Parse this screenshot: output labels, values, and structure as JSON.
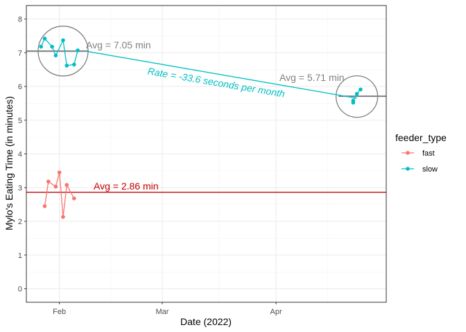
{
  "chart_data": {
    "type": "line",
    "xlabel": "Date (2022)",
    "ylabel": "Mylo's Eating Time (in minutes)",
    "x_ticks": [
      {
        "date": "2022-02-01",
        "label": "Feb"
      },
      {
        "date": "2022-03-01",
        "label": "Mar"
      },
      {
        "date": "2022-04-01",
        "label": "Apr"
      }
    ],
    "xlim": [
      "2022-01-23",
      "2022-05-01"
    ],
    "ylim": [
      -0.4,
      8.4
    ],
    "y_ticks": [
      0,
      1,
      2,
      3,
      4,
      5,
      6,
      7,
      8
    ],
    "grid": true,
    "legend": {
      "title": "feeder_type",
      "position": "right"
    },
    "series": [
      {
        "name": "fast",
        "color": "#F8766D",
        "points": [
          {
            "x": "2022-01-28",
            "y": 2.45
          },
          {
            "x": "2022-01-29",
            "y": 3.18
          },
          {
            "x": "2022-01-31",
            "y": 3.03
          },
          {
            "x": "2022-02-01",
            "y": 3.45
          },
          {
            "x": "2022-02-02",
            "y": 2.13
          },
          {
            "x": "2022-02-03",
            "y": 3.08
          },
          {
            "x": "2022-02-05",
            "y": 2.68
          }
        ]
      },
      {
        "name": "slow",
        "color": "#00BFC4",
        "points": [
          {
            "x": "2022-01-27",
            "y": 7.18
          },
          {
            "x": "2022-01-28",
            "y": 7.42
          },
          {
            "x": "2022-01-30",
            "y": 7.18
          },
          {
            "x": "2022-01-31",
            "y": 6.92
          },
          {
            "x": "2022-02-02",
            "y": 7.37
          },
          {
            "x": "2022-02-03",
            "y": 6.62
          },
          {
            "x": "2022-02-05",
            "y": 6.65
          },
          {
            "x": "2022-02-06",
            "y": 7.07
          },
          {
            "x": "2022-04-22",
            "y": 5.52
          },
          {
            "x": "2022-04-22",
            "y": 5.58
          },
          {
            "x": "2022-04-23",
            "y": 5.78
          },
          {
            "x": "2022-04-24",
            "y": 5.91
          }
        ]
      }
    ],
    "annotations": {
      "fast_avg": {
        "text": "Avg =  2.86 min",
        "value": 2.86,
        "color": "#C00000"
      },
      "slow_avg_early": {
        "text": "Avg =  7.05 min",
        "value": 7.05,
        "color": "#7F7F7F",
        "from": "2022-01-23",
        "to": "2022-02-09"
      },
      "slow_avg_late": {
        "text": "Avg = 5.71 min",
        "value": 5.71,
        "color": "#7F7F7F",
        "from": "2022-04-18",
        "to": "2022-05-01"
      },
      "rate": {
        "text": "Rate =  -33.6 seconds per month",
        "color": "#00BFC4",
        "start": {
          "x": "2022-02-08",
          "y": 7.05
        },
        "end": {
          "x": "2022-04-23",
          "y": 5.65
        }
      },
      "circles": [
        {
          "x": "2022-02-02",
          "y": 7.05,
          "color": "#7F7F7F"
        },
        {
          "x": "2022-04-23",
          "y": 5.7,
          "color": "#7F7F7F"
        }
      ]
    }
  }
}
